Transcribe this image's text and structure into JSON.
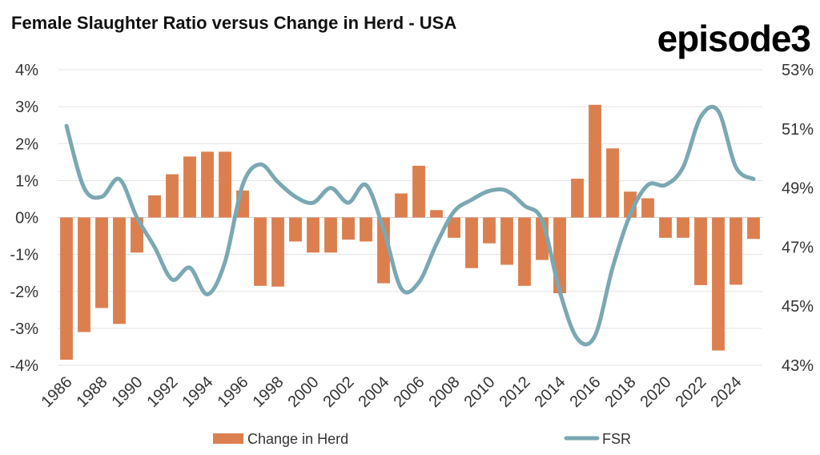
{
  "title": "Female Slaughter Ratio versus Change in Herd - USA",
  "logo": "episode3",
  "colors": {
    "bar": "#dc7f4f",
    "line": "#7aa8b3",
    "grid": "#e3e3e3"
  },
  "chart_data": {
    "type": "bar+line",
    "title": "Female Slaughter Ratio versus Change in Herd - USA",
    "years": [
      1986,
      1987,
      1988,
      1989,
      1990,
      1991,
      1992,
      1993,
      1994,
      1995,
      1996,
      1997,
      1998,
      1999,
      2000,
      2001,
      2002,
      2003,
      2004,
      2005,
      2006,
      2007,
      2008,
      2009,
      2010,
      2011,
      2012,
      2013,
      2014,
      2015,
      2016,
      2017,
      2018,
      2019,
      2020,
      2021,
      2022,
      2023,
      2024,
      2025
    ],
    "x_tick_labels": [
      "1986",
      "1988",
      "1990",
      "1992",
      "1994",
      "1996",
      "1998",
      "2000",
      "2002",
      "2004",
      "2006",
      "2008",
      "2010",
      "2012",
      "2014",
      "2016",
      "2018",
      "2020",
      "2022",
      "2024"
    ],
    "left_axis": {
      "ticks": [
        "4%",
        "3%",
        "2%",
        "1%",
        "0%",
        "-1%",
        "-2%",
        "-3%",
        "-4%"
      ],
      "ylim": [
        -4,
        4
      ]
    },
    "right_axis": {
      "ticks": [
        "53%",
        "51%",
        "49%",
        "47%",
        "45%",
        "43%"
      ],
      "ylim": [
        43,
        53
      ]
    },
    "series": [
      {
        "name": "Change in Herd",
        "type": "bar",
        "axis": "left",
        "values": [
          -3.85,
          -3.1,
          -2.45,
          -2.88,
          -0.95,
          0.6,
          1.17,
          1.65,
          1.78,
          1.78,
          0.73,
          -1.85,
          -1.87,
          -0.65,
          -0.95,
          -0.95,
          -0.6,
          -0.65,
          -1.78,
          0.65,
          1.4,
          0.2,
          -0.55,
          -1.37,
          -0.7,
          -1.28,
          -1.85,
          -1.15,
          -2.05,
          1.05,
          3.05,
          1.87,
          0.7,
          0.52,
          -0.55,
          -0.55,
          -1.83,
          -3.6,
          -1.82,
          -0.58
        ]
      },
      {
        "name": "FSR",
        "type": "line",
        "axis": "right",
        "values": [
          51.1,
          49.0,
          48.7,
          49.3,
          48.0,
          47.0,
          45.9,
          46.3,
          45.4,
          46.5,
          49.1,
          49.8,
          49.2,
          48.7,
          48.5,
          49.0,
          48.5,
          49.1,
          47.6,
          45.6,
          45.8,
          47.1,
          48.2,
          48.6,
          48.9,
          48.9,
          48.4,
          47.9,
          45.5,
          43.9,
          44.0,
          46.3,
          48.1,
          49.1,
          49.1,
          49.7,
          51.4,
          51.6,
          49.7,
          49.3
        ]
      }
    ],
    "legend": {
      "placement": "bottom",
      "entries": [
        "Change in Herd",
        "FSR"
      ]
    },
    "grid": true
  }
}
